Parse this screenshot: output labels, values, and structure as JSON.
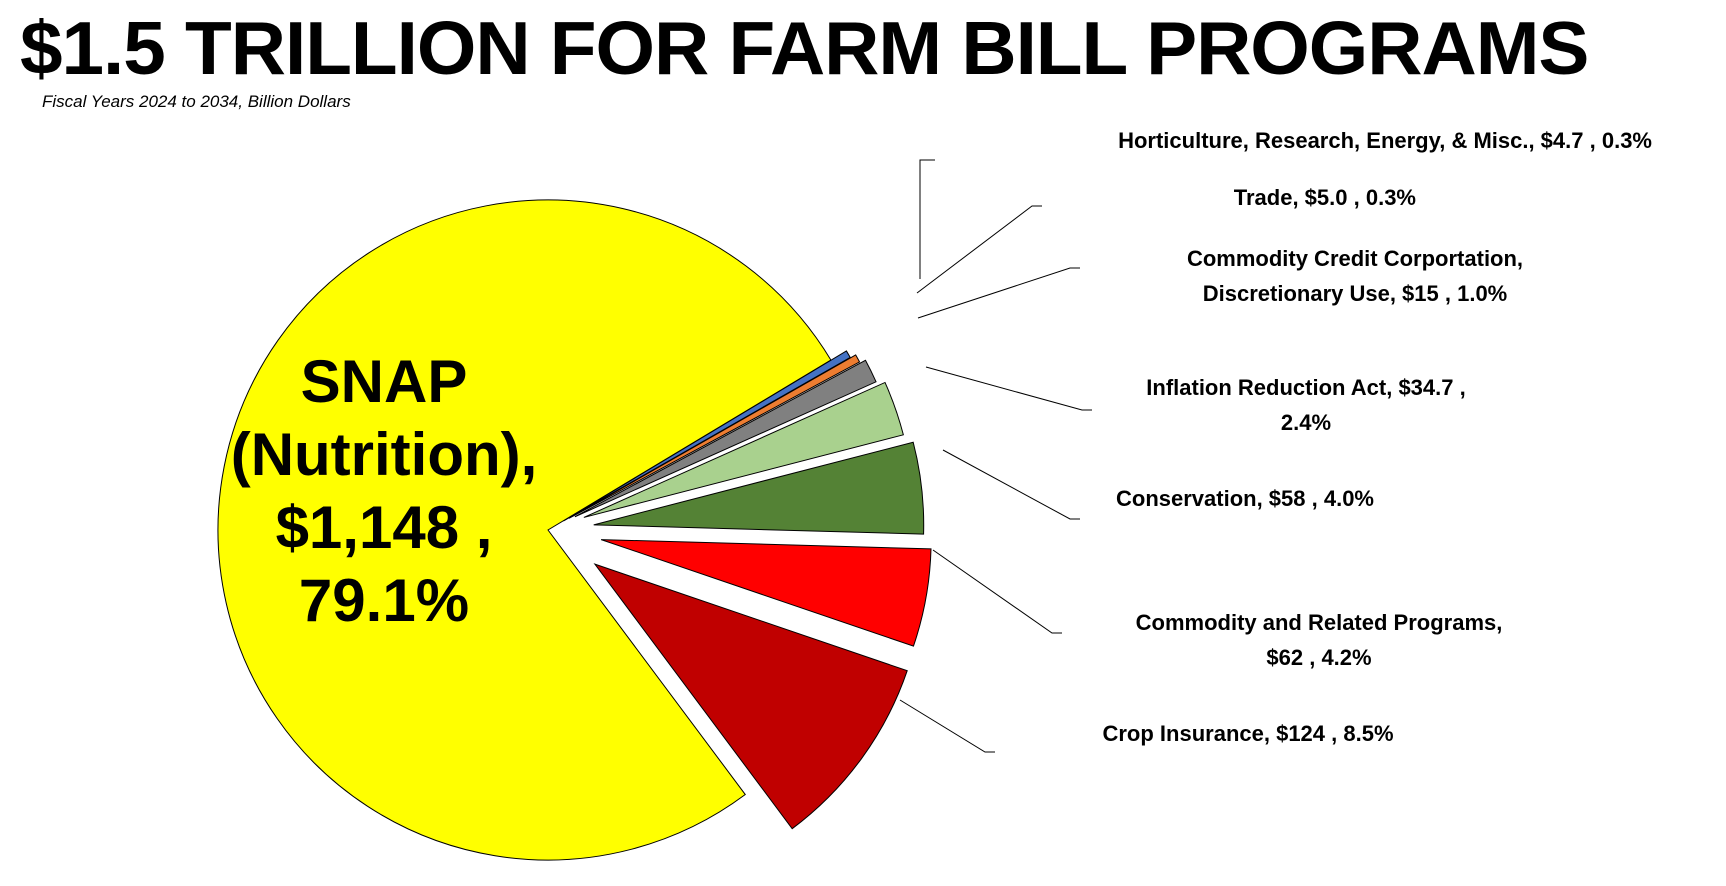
{
  "chart_data": {
    "type": "pie",
    "title": "$1.5 TRILLION FOR FARM BILL PROGRAMS",
    "subtitle": "Fiscal Years 2024 to 2034, Billion Dollars",
    "unit": "Billion Dollars",
    "slices": [
      {
        "name": "SNAP (Nutrition)",
        "value": 1148,
        "percent": 79.1,
        "color": "#ffff00",
        "label_lines": [
          "SNAP",
          "(Nutrition),",
          "$1,148 ,",
          "79.1%"
        ]
      },
      {
        "name": "Horticulture, Research, Energy, & Misc.",
        "value": 4.7,
        "percent": 0.3,
        "color": "#4472c4",
        "label_lines": [
          "Horticulture, Research, Energy, & Misc.,  $4.7 , 0.3%"
        ]
      },
      {
        "name": "Trade",
        "value": 5.0,
        "percent": 0.3,
        "color": "#ed7d31",
        "label_lines": [
          "Trade,  $5.0 , 0.3%"
        ]
      },
      {
        "name": "Commodity Credit Corportation, Discretionary Use",
        "value": 15,
        "percent": 1.0,
        "color": "#808080",
        "label_lines": [
          "Commodity Credit Corportation,",
          "Discretionary Use,  $15 , 1.0%"
        ]
      },
      {
        "name": "Inflation Reduction Act",
        "value": 34.7,
        "percent": 2.4,
        "color": "#a9d18e",
        "label_lines": [
          "Inflation Reduction Act,  $34.7 ,",
          "2.4%"
        ]
      },
      {
        "name": "Conservation",
        "value": 58,
        "percent": 4.0,
        "color": "#548235",
        "label_lines": [
          "Conservation,  $58 , 4.0%"
        ]
      },
      {
        "name": "Commodity and Related Programs",
        "value": 62,
        "percent": 4.2,
        "color": "#ff0000",
        "label_lines": [
          "Commodity and Related Programs,",
          "$62 , 4.2%"
        ]
      },
      {
        "name": "Crop Insurance",
        "value": 124,
        "percent": 8.5,
        "color": "#c00000",
        "label_lines": [
          "Crop Insurance,  $124 , 8.5%"
        ]
      }
    ]
  }
}
